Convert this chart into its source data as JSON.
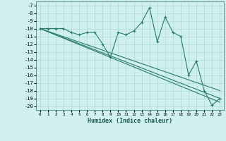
{
  "xlabel": "Humidex (Indice chaleur)",
  "background_color": "#cff0ee",
  "grid_color": "#aaddcc",
  "line_color": "#2a7a6a",
  "xlim": [
    -0.5,
    23.5
  ],
  "ylim": [
    -20.5,
    -6.5
  ],
  "yticks": [
    -7,
    -8,
    -9,
    -10,
    -11,
    -12,
    -13,
    -14,
    -15,
    -16,
    -17,
    -18,
    -19,
    -20
  ],
  "xticks": [
    0,
    1,
    2,
    3,
    4,
    5,
    6,
    7,
    8,
    9,
    10,
    11,
    12,
    13,
    14,
    15,
    16,
    17,
    18,
    19,
    20,
    21,
    22,
    23
  ],
  "main_series": {
    "x": [
      0,
      1,
      2,
      3,
      4,
      5,
      6,
      7,
      8,
      9,
      10,
      11,
      12,
      13,
      14,
      15,
      16,
      17,
      18,
      19,
      20,
      21,
      22,
      23
    ],
    "y": [
      -10,
      -10,
      -10,
      -10,
      -10.5,
      -10.8,
      -10.5,
      -10.5,
      -12,
      -13.7,
      -10.5,
      -10.8,
      -10.3,
      -9.2,
      -7.3,
      -11.7,
      -8.5,
      -10.5,
      -11,
      -16,
      -14.2,
      -18,
      -19.9,
      -19.0
    ]
  },
  "trend_lines": [
    {
      "x": [
        0,
        23
      ],
      "y": [
        -10,
        -18.0
      ]
    },
    {
      "x": [
        0,
        23
      ],
      "y": [
        -10,
        -19.0
      ]
    },
    {
      "x": [
        0,
        23
      ],
      "y": [
        -10,
        -19.5
      ]
    }
  ]
}
